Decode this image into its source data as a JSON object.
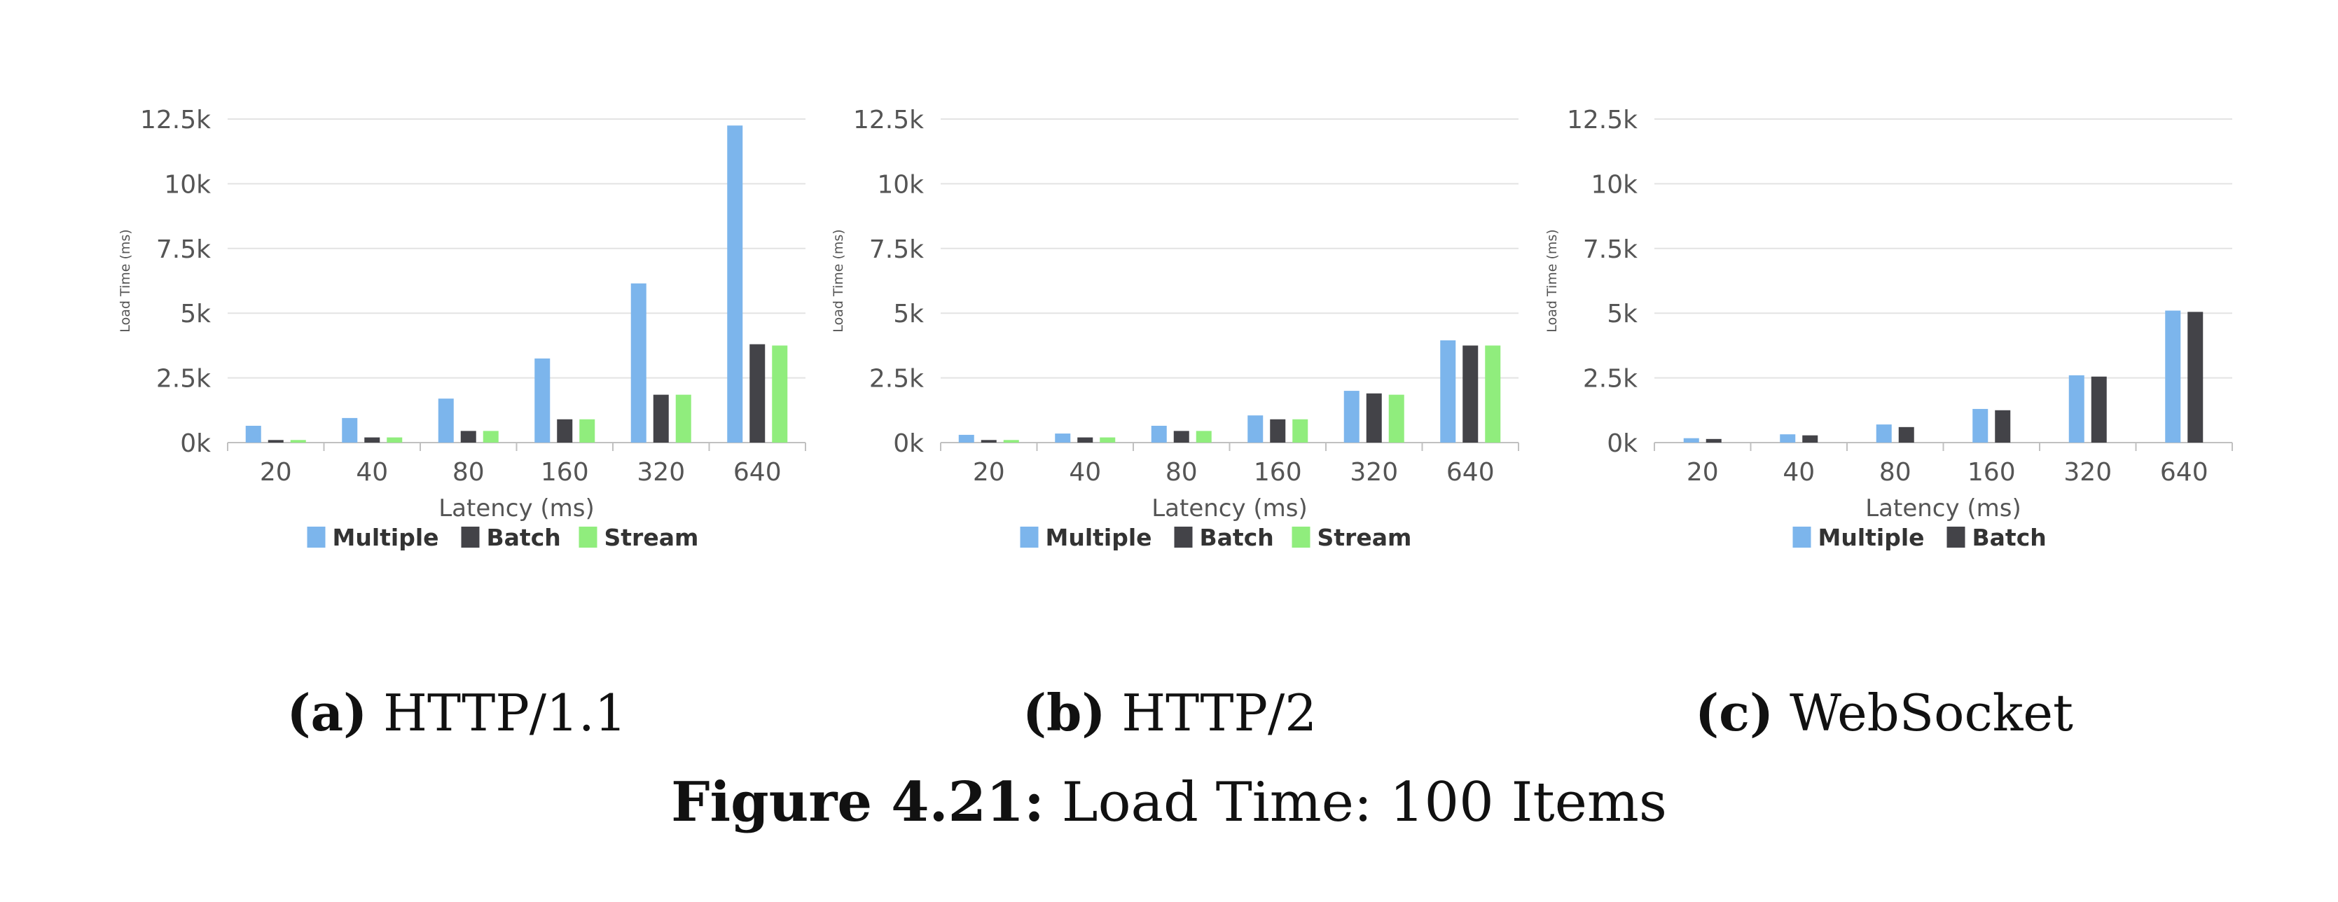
{
  "colors": {
    "Multiple": "#7cb5ec",
    "Batch": "#434348",
    "Stream": "#90ed7d"
  },
  "chart_data": [
    {
      "type": "bar",
      "id": "a",
      "categories": [
        "20",
        "40",
        "80",
        "160",
        "320",
        "640"
      ],
      "xlabel": "Latency (ms)",
      "ylabel": "Load Time (ms)",
      "ylim": [
        0,
        12500
      ],
      "yticks": [
        "0k",
        "2.5k",
        "5k",
        "7.5k",
        "10k",
        "12.5k"
      ],
      "grid": true,
      "legend_position": "bottom",
      "series": [
        {
          "name": "Multiple",
          "values": [
            650,
            950,
            1700,
            3250,
            6150,
            12250
          ]
        },
        {
          "name": "Batch",
          "values": [
            100,
            200,
            450,
            900,
            1850,
            3800
          ]
        },
        {
          "name": "Stream",
          "values": [
            100,
            200,
            450,
            900,
            1850,
            3750
          ]
        }
      ]
    },
    {
      "type": "bar",
      "id": "b",
      "categories": [
        "20",
        "40",
        "80",
        "160",
        "320",
        "640"
      ],
      "xlabel": "Latency (ms)",
      "ylabel": "Load Time (ms)",
      "ylim": [
        0,
        12500
      ],
      "yticks": [
        "0k",
        "2.5k",
        "5k",
        "7.5k",
        "10k",
        "12.5k"
      ],
      "grid": true,
      "legend_position": "bottom",
      "series": [
        {
          "name": "Multiple",
          "values": [
            300,
            350,
            650,
            1050,
            2000,
            3950
          ]
        },
        {
          "name": "Batch",
          "values": [
            100,
            200,
            450,
            900,
            1900,
            3750
          ]
        },
        {
          "name": "Stream",
          "values": [
            100,
            200,
            450,
            900,
            1850,
            3750
          ]
        }
      ]
    },
    {
      "type": "bar",
      "id": "c",
      "categories": [
        "20",
        "40",
        "80",
        "160",
        "320",
        "640"
      ],
      "xlabel": "Latency (ms)",
      "ylabel": "Load Time (ms)",
      "ylim": [
        0,
        12500
      ],
      "yticks": [
        "0k",
        "2.5k",
        "5k",
        "7.5k",
        "10k",
        "12.5k"
      ],
      "grid": true,
      "legend_position": "bottom",
      "series": [
        {
          "name": "Multiple",
          "values": [
            170,
            320,
            700,
            1300,
            2600,
            5100
          ]
        },
        {
          "name": "Batch",
          "values": [
            140,
            280,
            600,
            1250,
            2550,
            5050
          ]
        }
      ]
    }
  ],
  "captions": {
    "a": {
      "letter": "(a)",
      "text": "HTTP/1.1"
    },
    "b": {
      "letter": "(b)",
      "text": "HTTP/2"
    },
    "c": {
      "letter": "(c)",
      "text": "WebSocket"
    },
    "figure_label": "Figure 4.21:",
    "figure_text": "Load Time: 100 Items"
  }
}
